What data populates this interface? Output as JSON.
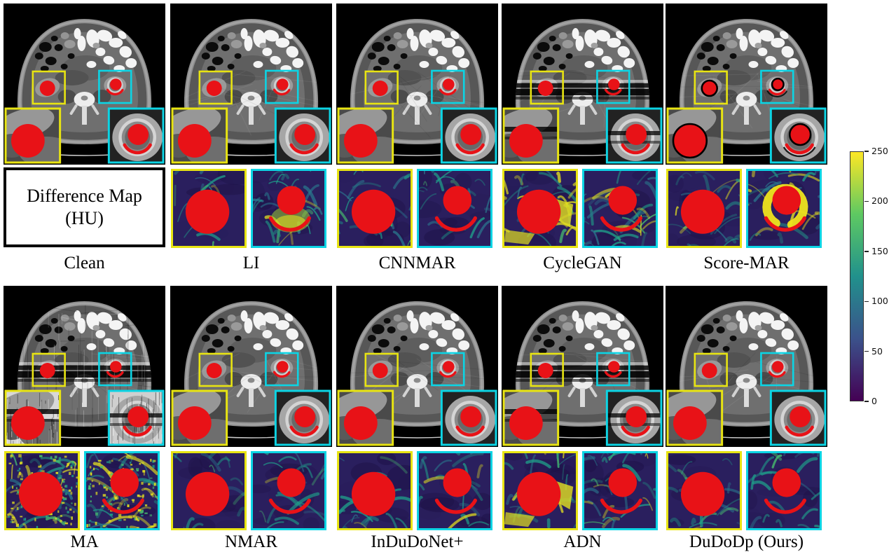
{
  "colors": {
    "roi_yellow": "#e8e412",
    "roi_cyan": "#0cd4e4",
    "metal_red": "#e81217",
    "diff_bg": "#2a1f5e",
    "diff_bg_dark": "#1d1145",
    "diff_teal": "#1f9e89",
    "diff_blue": "#2a788e",
    "diff_green": "#48c16e",
    "diff_yellow": "#e3e020"
  },
  "difference_map_box": {
    "line1": "Difference Map",
    "line2": "(HU)"
  },
  "colorbar": {
    "min": 0,
    "max": 250,
    "tick_labels": [
      "250",
      "200",
      "150",
      "100",
      "50",
      "0"
    ],
    "colormap": "viridis",
    "colormap_stops": [
      "#440154",
      "#3b528b",
      "#21918c",
      "#5ec962",
      "#fde725"
    ]
  },
  "top_row": {
    "panels": [
      {
        "label": "Clean",
        "ct": {},
        "diff": null
      },
      {
        "label": "LI",
        "ct": {
          "streaks": true
        },
        "diff": {
          "yellow": {
            "type": "circle",
            "level": 1
          },
          "cyan": {
            "type": "crescent",
            "level": 2,
            "glow": true
          }
        }
      },
      {
        "label": "CNNMAR",
        "ct": {
          "streaks": true
        },
        "diff": {
          "yellow": {
            "type": "circle",
            "level": 1
          },
          "cyan": {
            "type": "crescent",
            "level": 1
          }
        }
      },
      {
        "label": "CycleGAN",
        "ct": {
          "streaks": true,
          "bands": true
        },
        "diff": {
          "yellow": {
            "type": "circle",
            "level": 3,
            "blobs": true
          },
          "cyan": {
            "type": "crescent",
            "level": 3
          }
        }
      },
      {
        "label": "Score-MAR",
        "ct": {
          "streaks": true,
          "halo": true
        },
        "diff": {
          "yellow": {
            "type": "circle",
            "level": 2
          },
          "cyan": {
            "type": "crescent",
            "level": 2,
            "ring": true
          }
        }
      }
    ]
  },
  "bottom_row": {
    "panels": [
      {
        "label": "MA",
        "ct": {
          "streaks": true,
          "noise": true,
          "bands": true
        },
        "diff": {
          "yellow": {
            "type": "circle",
            "level": 3,
            "speckle": true
          },
          "cyan": {
            "type": "crescent",
            "level": 3,
            "speckle": true
          }
        }
      },
      {
        "label": "NMAR",
        "ct": {
          "streaks": true
        },
        "diff": {
          "yellow": {
            "type": "circle",
            "level": 0
          },
          "cyan": {
            "type": "crescent",
            "level": 1
          }
        }
      },
      {
        "label": "InDuDoNet+",
        "ct": {
          "streaks": true
        },
        "diff": {
          "yellow": {
            "type": "circle",
            "level": 1
          },
          "cyan": {
            "type": "crescent",
            "level": 1
          }
        }
      },
      {
        "label": "ADN",
        "ct": {
          "streaks": true,
          "bands": true
        },
        "diff": {
          "yellow": {
            "type": "circle",
            "level": 2,
            "blobs": true
          },
          "cyan": {
            "type": "crescent",
            "level": 2
          }
        }
      },
      {
        "label": "DuDoDp (Ours)",
        "ct": {
          "streaks": true
        },
        "diff": {
          "yellow": {
            "type": "circle",
            "level": 1
          },
          "cyan": {
            "type": "crescent",
            "level": 1
          }
        }
      }
    ]
  }
}
